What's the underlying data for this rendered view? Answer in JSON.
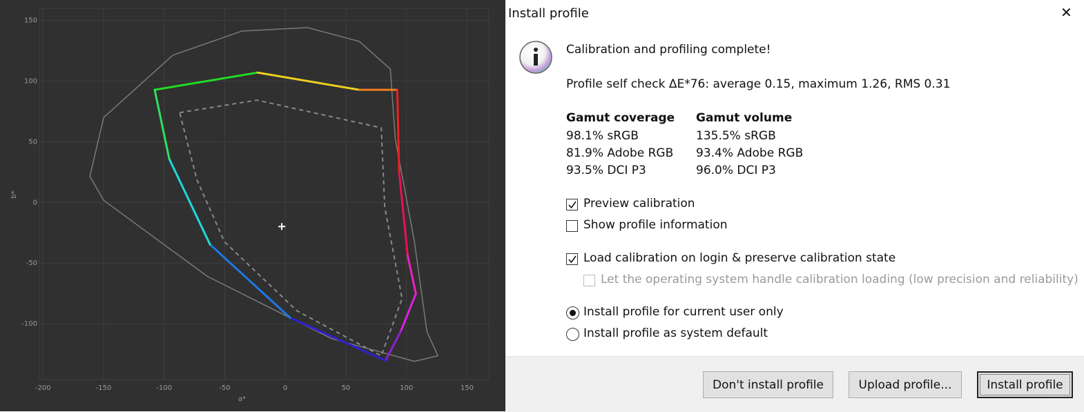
{
  "chart_data": {
    "type": "line",
    "x_label": "a*",
    "y_label": "b*",
    "xlim": [
      -203,
      168
    ],
    "ylim": [
      -146,
      160
    ],
    "xticks": [
      -200,
      -150,
      -100,
      -50,
      0,
      50,
      100,
      150
    ],
    "yticks": [
      -100,
      -50,
      0,
      50,
      100,
      150
    ],
    "grid": true,
    "background": "#303030",
    "grid_color": "#3e3e3e",
    "tick_color": "#9a9a9a",
    "series": [
      {
        "style": "solid",
        "color": "#7a7a7a",
        "closed": true,
        "x": [
          18.2,
          61,
          86.7,
          90.7,
          106.6,
          116.9,
          126,
          106.6,
          38.2,
          -64.4,
          -149.9,
          -161.3,
          -149.9,
          -92.9,
          -35.9
        ],
        "values": [
          144.1,
          132.7,
          109.9,
          53,
          -32.5,
          -106.5,
          -126.4,
          -131,
          -112.2,
          -60.9,
          1.7,
          21.6,
          70,
          121.3,
          141.2
        ]
      },
      {
        "style": "dashed",
        "color": "#8a8a8a",
        "closed": true,
        "x": [
          -87.2,
          -23.4,
          79.2,
          82.1,
          96.4,
          79.2,
          9.7,
          -50.2,
          -73
        ],
        "values": [
          74,
          84.3,
          61.5,
          -4,
          -79.2,
          -126.4,
          -89.4,
          -32.5,
          18.8
        ]
      },
      {
        "style": "solid",
        "closed": true,
        "colors": [
          "#22dd22",
          "#f0d020",
          "#f08020",
          "#ee2020",
          "#ee1050",
          "#ee20c0",
          "#dd20dd",
          "#9020d0",
          "#3020d0",
          "#1e78e6",
          "#20d8d8",
          "#30e060"
        ],
        "x": [
          -107.8,
          -22.8,
          61,
          92.4,
          94,
          101,
          107.8,
          95.2,
          82.7,
          4,
          -62.1,
          -95.8
        ],
        "values": [
          92.8,
          107,
          92.8,
          92.8,
          24.5,
          -43.8,
          -75.2,
          -106.5,
          -130.4,
          -95.1,
          -34.7,
          35.9
        ]
      },
      {
        "style": "cross",
        "color": "#ffffff",
        "x": [
          -2.9
        ],
        "values": [
          -19.9
        ]
      }
    ]
  },
  "dialog": {
    "title": "Install profile",
    "close": "✕",
    "heading": "Calibration and profiling complete!",
    "self_check": "Profile self check ΔE*76: average 0.15, maximum 1.26, RMS 0.31",
    "coverage": {
      "heading": "Gamut coverage",
      "lines": [
        "98.1% sRGB",
        "81.9% Adobe RGB",
        "93.5% DCI P3"
      ]
    },
    "volume": {
      "heading": "Gamut volume",
      "lines": [
        "135.5% sRGB",
        "93.4% Adobe RGB",
        "96.0% DCI P3"
      ]
    },
    "checkboxes": [
      {
        "label": "Preview calibration",
        "checked": true,
        "disabled": false
      },
      {
        "label": "Show profile information",
        "checked": false,
        "disabled": false
      },
      {
        "label": "Load calibration on login & preserve calibration state",
        "checked": true,
        "disabled": false
      },
      {
        "label": "Let the operating system handle calibration loading (low precision and reliability)",
        "checked": false,
        "disabled": true
      }
    ],
    "radios": [
      {
        "label": "Install profile for current user only",
        "selected": true
      },
      {
        "label": "Install profile as system default",
        "selected": false
      }
    ],
    "buttons": [
      "Don't install profile",
      "Upload profile...",
      "Install profile"
    ]
  }
}
